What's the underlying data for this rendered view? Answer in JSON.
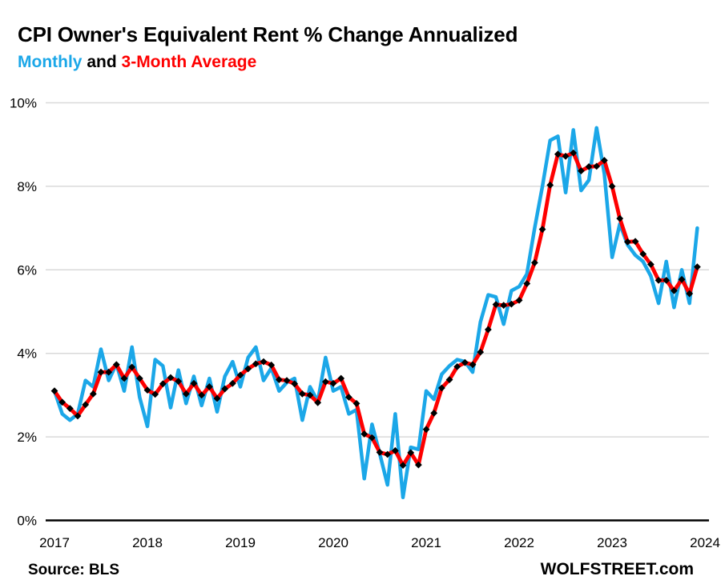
{
  "page": {
    "title": "CPI Owner's Equivalent Rent % Change Annualized",
    "subtitle": {
      "monthly_label": "Monthly",
      "joiner": "and",
      "average_label": "3-Month Average"
    },
    "footer_left": "Source: BLS",
    "footer_right": "WOLFSTREET.com"
  },
  "colors": {
    "monthly_blue": "#1BA7E8",
    "average_red": "#FE0000",
    "marker_black": "#000000",
    "gridline_gray": "#D9D9D9",
    "axis_black": "#000000",
    "text_black": "#000000"
  },
  "chart_data": {
    "type": "line",
    "title": "CPI Owner's Equivalent Rent % Change Annualized",
    "subtitle": "Monthly and 3-Month Average",
    "x_start_month": "2017-01",
    "x_end_month": "2023-12",
    "x_cadence": "monthly",
    "x_tick_labels": [
      "2017",
      "2018",
      "2019",
      "2020",
      "2021",
      "2022",
      "2023",
      "2024"
    ],
    "y_tick_labels": [
      "0%",
      "2%",
      "4%",
      "6%",
      "8%",
      "10%"
    ],
    "y_ticks": [
      0,
      2,
      4,
      6,
      8,
      10
    ],
    "ylim": [
      0,
      10
    ],
    "grid": "horizontal-only",
    "legend_position": "in-subtitle",
    "series": [
      {
        "name": "Monthly",
        "color": "#1BA7E8",
        "marker": "none",
        "values": [
          3.1,
          2.55,
          2.4,
          2.55,
          3.35,
          3.2,
          4.1,
          3.35,
          3.75,
          3.1,
          4.15,
          2.95,
          2.25,
          3.85,
          3.7,
          2.7,
          3.6,
          2.8,
          3.45,
          2.75,
          3.4,
          2.6,
          3.45,
          3.8,
          3.2,
          3.9,
          4.15,
          3.35,
          3.65,
          3.1,
          3.3,
          3.4,
          2.4,
          3.2,
          2.85,
          3.9,
          3.1,
          3.2,
          2.55,
          2.65,
          1.0,
          2.3,
          1.6,
          0.85,
          2.55,
          0.55,
          1.75,
          1.7,
          3.1,
          2.9,
          3.5,
          3.7,
          3.85,
          3.8,
          3.55,
          4.75,
          5.4,
          5.35,
          4.7,
          5.5,
          5.6,
          5.9,
          7.0,
          8.0,
          9.1,
          9.2,
          7.85,
          9.35,
          7.9,
          8.15,
          9.4,
          8.3,
          6.3,
          7.1,
          6.6,
          6.35,
          6.2,
          5.85,
          5.2,
          6.2,
          5.1,
          6.0,
          5.2,
          7.0
        ]
      },
      {
        "name": "3-Month Average",
        "color": "#FE0000",
        "marker": "diamond",
        "marker_color": "#000000",
        "values": [
          3.1,
          2.83,
          2.68,
          2.5,
          2.77,
          3.03,
          3.55,
          3.55,
          3.73,
          3.4,
          3.67,
          3.4,
          3.12,
          3.02,
          3.27,
          3.42,
          3.33,
          3.03,
          3.28,
          3.0,
          3.2,
          2.92,
          3.15,
          3.28,
          3.48,
          3.63,
          3.75,
          3.8,
          3.72,
          3.37,
          3.35,
          3.27,
          3.03,
          3.0,
          2.82,
          3.32,
          3.28,
          3.4,
          2.95,
          2.8,
          2.07,
          1.98,
          1.63,
          1.58,
          1.67,
          1.32,
          1.62,
          1.33,
          2.18,
          2.57,
          3.17,
          3.37,
          3.68,
          3.78,
          3.73,
          4.03,
          4.57,
          5.17,
          5.15,
          5.18,
          5.27,
          5.67,
          6.17,
          6.97,
          8.03,
          8.77,
          8.72,
          8.8,
          8.37,
          8.47,
          8.48,
          8.62,
          8.0,
          7.23,
          6.67,
          6.68,
          6.38,
          6.13,
          5.75,
          5.75,
          5.5,
          5.77,
          5.43,
          6.07
        ]
      }
    ]
  }
}
